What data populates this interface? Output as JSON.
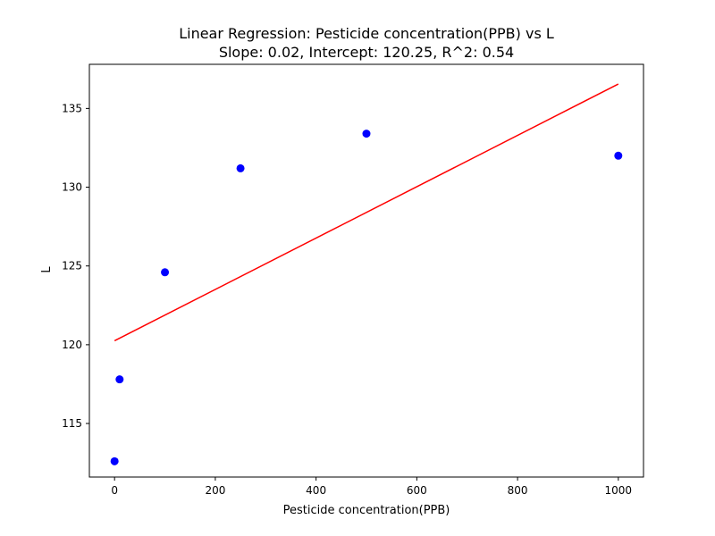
{
  "chart_data": {
    "type": "scatter",
    "title": "Linear Regression: Pesticide concentration(PPB) vs L",
    "subtitle": "Slope: 0.02, Intercept: 120.25, R^2: 0.54",
    "xlabel": "Pesticide concentration(PPB)",
    "ylabel": "L",
    "xlim": [
      -50,
      1050
    ],
    "ylim": [
      111.6,
      137.8
    ],
    "x_ticks": [
      0,
      200,
      400,
      600,
      800,
      1000
    ],
    "y_ticks": [
      115,
      120,
      125,
      130,
      135
    ],
    "grid": false,
    "series": [
      {
        "kind": "scatter",
        "color": "#0000ff",
        "points": [
          {
            "x": 0,
            "y": 112.6
          },
          {
            "x": 10,
            "y": 117.8
          },
          {
            "x": 100,
            "y": 124.6
          },
          {
            "x": 250,
            "y": 131.2
          },
          {
            "x": 500,
            "y": 133.4
          },
          {
            "x": 1000,
            "y": 132.0
          }
        ]
      },
      {
        "kind": "line",
        "color": "#ff0000",
        "points": [
          {
            "x": 0,
            "y": 120.25
          },
          {
            "x": 1000,
            "y": 136.55
          }
        ]
      }
    ]
  }
}
